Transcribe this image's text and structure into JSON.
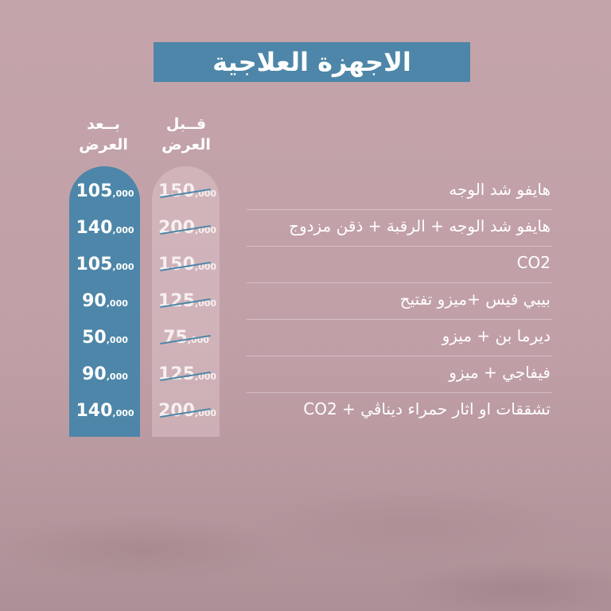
{
  "title": "الاجهزة العلاجية",
  "headers": {
    "before": [
      "قــبل",
      "العرض"
    ],
    "after": [
      "بــعد",
      "العرض"
    ]
  },
  "colors": {
    "accent": "#4d86a8",
    "background": "#c4a4ab"
  },
  "rows": [
    {
      "service": "هايفو شد الوجه",
      "before": "150",
      "after": "105",
      "suffix": ",000"
    },
    {
      "service": "هايفو شد الوجه + الرقبة + ذقن مزدوج",
      "before": "200",
      "after": "140",
      "suffix": ",000"
    },
    {
      "service": "CO2",
      "before": "150",
      "after": "105",
      "suffix": ",000"
    },
    {
      "service": "بيبي فيس +ميزو تفتيح",
      "before": "125",
      "after": "90",
      "suffix": ",000"
    },
    {
      "service": "ديرما بن + ميزو",
      "before": "75",
      "after": "50",
      "suffix": ",000"
    },
    {
      "service": "فيفاجي + ميزو",
      "before": "125",
      "after": "90",
      "suffix": ",000"
    },
    {
      "service": "تشققات او اثار حمراء ديناڤي + CO2",
      "before": "200",
      "after": "140",
      "suffix": ",000"
    }
  ]
}
